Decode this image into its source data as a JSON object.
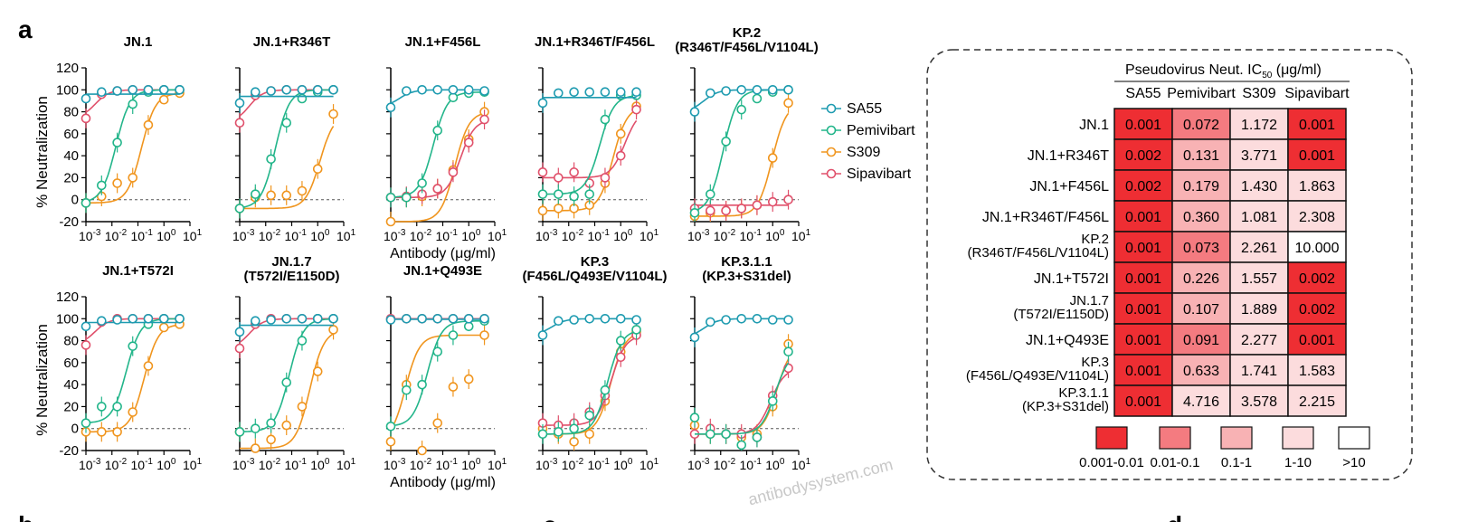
{
  "panel_labels": {
    "a": "a",
    "b": "b",
    "c": "c",
    "d": "d"
  },
  "y_axis_title": "% Neutralization",
  "x_axis_title": "Antibody (μg/ml)",
  "watermark": "antibodysystem.com",
  "legend": [
    {
      "name": "SA55",
      "color": "#1e9bb0"
    },
    {
      "name": "Pemivibart",
      "color": "#22b58a"
    },
    {
      "name": "S309",
      "color": "#f0951e"
    },
    {
      "name": "Sipavibart",
      "color": "#e0506b"
    }
  ],
  "colors": {
    "SA55": "#1e9bb0",
    "Pemivibart": "#22b58a",
    "S309": "#f0951e",
    "Sipavibart": "#e0506b"
  },
  "chart_data": [
    {
      "type": "scatter",
      "title": "JN.1",
      "xlabel": "",
      "ylabel": "% Neutralization",
      "x_scale": "log",
      "xlim": [
        0.001,
        10
      ],
      "ylim": [
        -20,
        120
      ],
      "x": [
        0.001,
        0.004,
        0.016,
        0.063,
        0.25,
        1,
        4
      ],
      "series": [
        {
          "name": "SA55",
          "values": [
            92,
            98,
            99,
            100,
            100,
            100,
            100
          ]
        },
        {
          "name": "Pemivibart",
          "values": [
            -3,
            13,
            52,
            87,
            98,
            100,
            100
          ]
        },
        {
          "name": "S309",
          "values": [
            -3,
            3,
            15,
            20,
            68,
            91,
            97
          ]
        },
        {
          "name": "Sipavibart",
          "values": [
            74,
            96,
            99,
            100,
            100,
            100,
            100
          ]
        }
      ]
    },
    {
      "type": "scatter",
      "title": "JN.1+R346T",
      "xlabel": "",
      "ylabel": "",
      "x_scale": "log",
      "xlim": [
        0.001,
        10
      ],
      "ylim": [
        -20,
        120
      ],
      "x": [
        0.001,
        0.004,
        0.016,
        0.063,
        0.25,
        1,
        4
      ],
      "series": [
        {
          "name": "SA55",
          "values": [
            88,
            98,
            99,
            100,
            100,
            100,
            100
          ]
        },
        {
          "name": "Pemivibart",
          "values": [
            -8,
            5,
            37,
            70,
            92,
            98,
            100
          ]
        },
        {
          "name": "S309",
          "values": [
            -8,
            2,
            4,
            4,
            8,
            28,
            78
          ]
        },
        {
          "name": "Sipavibart",
          "values": [
            70,
            95,
            99,
            100,
            100,
            100,
            100
          ]
        }
      ]
    },
    {
      "type": "scatter",
      "title": "JN.1+F456L",
      "xlabel": "Antibody (μg/ml)",
      "ylabel": "",
      "x_scale": "log",
      "xlim": [
        0.001,
        10
      ],
      "ylim": [
        -20,
        120
      ],
      "x": [
        0.001,
        0.004,
        0.016,
        0.063,
        0.25,
        1,
        4
      ],
      "series": [
        {
          "name": "SA55",
          "values": [
            84,
            99,
            100,
            100,
            100,
            100,
            99
          ]
        },
        {
          "name": "Pemivibart",
          "values": [
            2,
            2,
            15,
            63,
            93,
            97,
            98
          ]
        },
        {
          "name": "S309",
          "values": [
            -20,
            2,
            3,
            10,
            27,
            55,
            80
          ]
        },
        {
          "name": "Sipavibart",
          "values": [
            2,
            3,
            5,
            10,
            25,
            52,
            73
          ]
        }
      ]
    },
    {
      "type": "scatter",
      "title": "JN.1+R346T/F456L",
      "xlabel": "",
      "ylabel": "",
      "x_scale": "log",
      "xlim": [
        0.001,
        10
      ],
      "ylim": [
        -20,
        120
      ],
      "x": [
        0.001,
        0.004,
        0.016,
        0.063,
        0.25,
        1,
        4
      ],
      "series": [
        {
          "name": "SA55",
          "values": [
            88,
            97,
            98,
            98,
            98,
            98,
            98
          ]
        },
        {
          "name": "Pemivibart",
          "values": [
            5,
            5,
            3,
            5,
            73,
            95,
            95
          ]
        },
        {
          "name": "S309",
          "values": [
            -10,
            -8,
            -8,
            -5,
            15,
            60,
            85
          ]
        },
        {
          "name": "Sipavibart",
          "values": [
            25,
            20,
            25,
            15,
            20,
            40,
            82
          ]
        }
      ]
    },
    {
      "type": "scatter",
      "title": "KP.2\n(R346T/F456L/V1104L)",
      "xlabel": "",
      "ylabel": "",
      "x_scale": "log",
      "xlim": [
        0.001,
        10
      ],
      "ylim": [
        -20,
        120
      ],
      "x": [
        0.001,
        0.004,
        0.016,
        0.063,
        0.25,
        1,
        4
      ],
      "series": [
        {
          "name": "SA55",
          "values": [
            80,
            97,
            99,
            100,
            100,
            100,
            100
          ]
        },
        {
          "name": "Pemivibart",
          "values": [
            -12,
            5,
            53,
            82,
            92,
            98,
            100
          ]
        },
        {
          "name": "S309",
          "values": [
            -15,
            -12,
            -10,
            -8,
            -5,
            38,
            88
          ]
        },
        {
          "name": "Sipavibart",
          "values": [
            -8,
            -10,
            -10,
            -8,
            -5,
            -2,
            0
          ]
        }
      ]
    },
    {
      "type": "scatter",
      "title": "JN.1+T572I",
      "xlabel": "",
      "ylabel": "% Neutralization",
      "x_scale": "log",
      "xlim": [
        0.001,
        10
      ],
      "ylim": [
        -20,
        120
      ],
      "x": [
        0.001,
        0.004,
        0.016,
        0.063,
        0.25,
        1,
        4
      ],
      "series": [
        {
          "name": "SA55",
          "values": [
            93,
            98,
            99,
            100,
            100,
            100,
            100
          ]
        },
        {
          "name": "Pemivibart",
          "values": [
            5,
            20,
            20,
            75,
            95,
            100,
            100
          ]
        },
        {
          "name": "S309",
          "values": [
            -3,
            -3,
            -3,
            15,
            57,
            92,
            95
          ]
        },
        {
          "name": "Sipavibart",
          "values": [
            76,
            97,
            100,
            100,
            100,
            100,
            100
          ]
        }
      ]
    },
    {
      "type": "scatter",
      "title": "JN.1.7\n(T572I/E1150D)",
      "xlabel": "",
      "ylabel": "",
      "x_scale": "log",
      "xlim": [
        0.001,
        10
      ],
      "ylim": [
        -20,
        120
      ],
      "x": [
        0.001,
        0.004,
        0.016,
        0.063,
        0.25,
        1,
        4
      ],
      "series": [
        {
          "name": "SA55",
          "values": [
            88,
            98,
            99,
            100,
            100,
            100,
            100
          ]
        },
        {
          "name": "Pemivibart",
          "values": [
            -3,
            0,
            5,
            42,
            80,
            100,
            100
          ]
        },
        {
          "name": "S309",
          "values": [
            -3,
            -18,
            -10,
            3,
            20,
            52,
            90
          ]
        },
        {
          "name": "Sipavibart",
          "values": [
            73,
            95,
            100,
            100,
            100,
            100,
            100
          ]
        }
      ]
    },
    {
      "type": "scatter",
      "title": "JN.1+Q493E",
      "xlabel": "Antibody (μg/ml)",
      "ylabel": "",
      "x_scale": "log",
      "xlim": [
        0.001,
        10
      ],
      "ylim": [
        -20,
        120
      ],
      "x": [
        0.001,
        0.004,
        0.016,
        0.063,
        0.25,
        1,
        4
      ],
      "series": [
        {
          "name": "SA55",
          "values": [
            99,
            100,
            100,
            100,
            100,
            100,
            100
          ]
        },
        {
          "name": "Pemivibart",
          "values": [
            2,
            35,
            40,
            70,
            85,
            93,
            98
          ]
        },
        {
          "name": "S309",
          "values": [
            -12,
            40,
            -20,
            5,
            38,
            45,
            85
          ]
        },
        {
          "name": "Sipavibart",
          "values": [
            100,
            100,
            100,
            100,
            100,
            100,
            100
          ]
        }
      ]
    },
    {
      "type": "scatter",
      "title": "KP.3\n(F456L/Q493E/V1104L)",
      "xlabel": "",
      "ylabel": "",
      "x_scale": "log",
      "xlim": [
        0.001,
        10
      ],
      "ylim": [
        -20,
        120
      ],
      "x": [
        0.001,
        0.004,
        0.016,
        0.063,
        0.25,
        1,
        4
      ],
      "series": [
        {
          "name": "SA55",
          "values": [
            85,
            98,
            99,
            100,
            100,
            100,
            99
          ]
        },
        {
          "name": "Pemivibart",
          "values": [
            -5,
            -3,
            0,
            12,
            35,
            80,
            90
          ]
        },
        {
          "name": "S309",
          "values": [
            0,
            -5,
            -12,
            -5,
            25,
            70,
            88
          ]
        },
        {
          "name": "Sipavibart",
          "values": [
            5,
            3,
            5,
            15,
            30,
            65,
            85
          ]
        }
      ]
    },
    {
      "type": "scatter",
      "title": "KP.3.1.1\n(KP.3+S31del)",
      "xlabel": "",
      "ylabel": "",
      "x_scale": "log",
      "xlim": [
        0.001,
        10
      ],
      "ylim": [
        -20,
        120
      ],
      "x": [
        0.001,
        0.004,
        0.016,
        0.063,
        0.25,
        1,
        4
      ],
      "series": [
        {
          "name": "SA55",
          "values": [
            83,
            97,
            99,
            100,
            100,
            99,
            99
          ]
        },
        {
          "name": "Pemivibart",
          "values": [
            10,
            -5,
            -5,
            -15,
            -8,
            25,
            70
          ]
        },
        {
          "name": "S309",
          "values": [
            3,
            -5,
            -5,
            -8,
            -5,
            20,
            77
          ]
        },
        {
          "name": "Sipavibart",
          "values": [
            -5,
            0,
            -5,
            -5,
            -8,
            30,
            55
          ]
        }
      ]
    },
    {
      "type": "heatmap",
      "title": "Pseudovirus  Neut. IC50 (μg/ml)",
      "columns": [
        "SA55",
        "Pemivibart",
        "S309",
        "Sipavibart"
      ],
      "rows": [
        {
          "label": "JN.1",
          "values": [
            "0.001",
            "0.072",
            "1.172",
            "0.001"
          ]
        },
        {
          "label": "JN.1+R346T",
          "values": [
            "0.002",
            "0.131",
            "3.771",
            "0.001"
          ]
        },
        {
          "label": "JN.1+F456L",
          "values": [
            "0.002",
            "0.179",
            "1.430",
            "1.863"
          ]
        },
        {
          "label": "JN.1+R346T/F456L",
          "values": [
            "0.001",
            "0.360",
            "1.081",
            "2.308"
          ]
        },
        {
          "label": "KP.2\n(R346T/F456L/V1104L)",
          "values": [
            "0.001",
            "0.073",
            "2.261",
            "10.000"
          ]
        },
        {
          "label": "JN.1+T572I",
          "values": [
            "0.001",
            "0.226",
            "1.557",
            "0.002"
          ]
        },
        {
          "label": "JN.1.7\n(T572I/E1150D)",
          "values": [
            "0.001",
            "0.107",
            "1.889",
            "0.002"
          ]
        },
        {
          "label": "JN.1+Q493E",
          "values": [
            "0.001",
            "0.091",
            "2.277",
            "0.001"
          ]
        },
        {
          "label": "KP.3\n(F456L/Q493E/V1104L)",
          "values": [
            "0.001",
            "0.633",
            "1.741",
            "1.583"
          ]
        },
        {
          "label": "KP.3.1.1\n(KP.3+S31del)",
          "values": [
            "0.001",
            "4.716",
            "3.578",
            "2.215"
          ]
        }
      ],
      "legend_bins": [
        {
          "label": "0.001-0.01",
          "color": "#ee2e33"
        },
        {
          "label": "0.01-0.1",
          "color": "#f47b80"
        },
        {
          "label": "0.1-1",
          "color": "#f8b2b4"
        },
        {
          "label": "1-10",
          "color": "#fcdcdd"
        },
        {
          "label": ">10",
          "color": "#ffffff"
        }
      ]
    }
  ]
}
